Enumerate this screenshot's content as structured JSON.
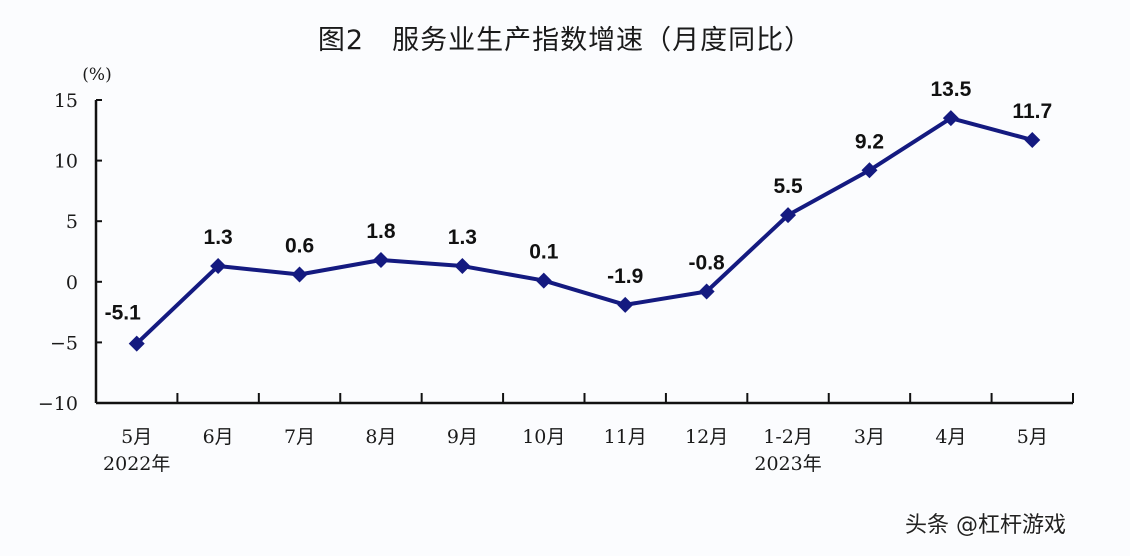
{
  "title": "图2　服务业生产指数增速（月度同比）",
  "watermark": "头条 @杠杆游戏",
  "colors": {
    "line": "#141a80",
    "axis": "#111111",
    "text": "#1a1a1a",
    "background": "#fbfcfe"
  },
  "chart_data": {
    "type": "line",
    "title": "图2　服务业生产指数增速（月度同比）",
    "xlabel": "",
    "ylabel": "(%)",
    "ylim": [
      -10,
      15
    ],
    "yticks": [
      15,
      10,
      5,
      0,
      -5,
      -10
    ],
    "grid": false,
    "legend": null,
    "categories": [
      "5月",
      "6月",
      "7月",
      "8月",
      "9月",
      "10月",
      "11月",
      "12月",
      "1-2月",
      "3月",
      "4月",
      "5月"
    ],
    "year_labels": [
      {
        "index": 0,
        "label": "2022年"
      },
      {
        "index": 8,
        "label": "2023年"
      }
    ],
    "series": [
      {
        "name": "服务业生产指数增速",
        "values": [
          -5.1,
          1.3,
          0.6,
          1.8,
          1.3,
          0.1,
          -1.9,
          -0.8,
          5.5,
          9.2,
          13.5,
          11.7
        ]
      }
    ],
    "data_labels": [
      "-5.1",
      "1.3",
      "0.6",
      "1.8",
      "1.3",
      "0.1",
      "-1.9",
      "-0.8",
      "5.5",
      "9.2",
      "13.5",
      "11.7"
    ]
  }
}
